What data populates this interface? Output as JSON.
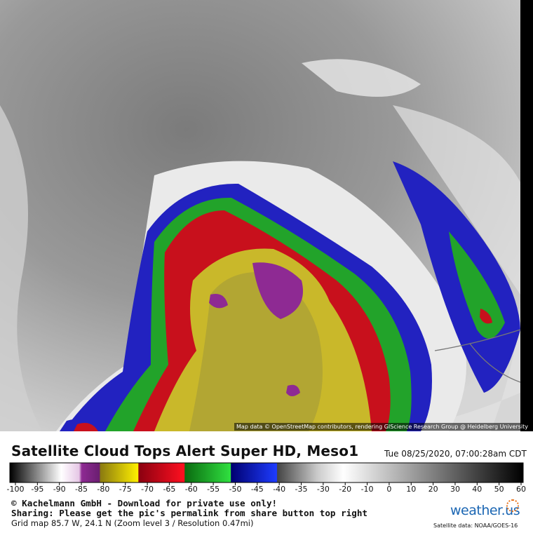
{
  "header": {
    "title": "Satellite Cloud Tops Alert Super HD, Meso1",
    "timestamp": "Tue 08/25/2020, 07:00:28am CDT"
  },
  "map": {
    "attribution": "Map data © OpenStreetMap contributors, rendering GIScience Research Group @ Heidelberg University"
  },
  "colorbar": {
    "ticks": [
      -100,
      -95,
      -90,
      -85,
      -80,
      -75,
      -70,
      -65,
      -60,
      -55,
      -50,
      -45,
      -40,
      -35,
      -30,
      -20,
      -10,
      0,
      10,
      20,
      30,
      40,
      50,
      60
    ]
  },
  "footer": {
    "copyright": "© Kachelmann GmbH - Download for private use only!",
    "sharing": "Sharing: Please get the pic's permalink from share button top right",
    "grid": "Grid map 85.7 W, 24.1 N (Zoom level 3 / Resolution 0.47mi)",
    "logo": "weather.us",
    "source": "Satellite data: NOAA/GOES-16"
  }
}
